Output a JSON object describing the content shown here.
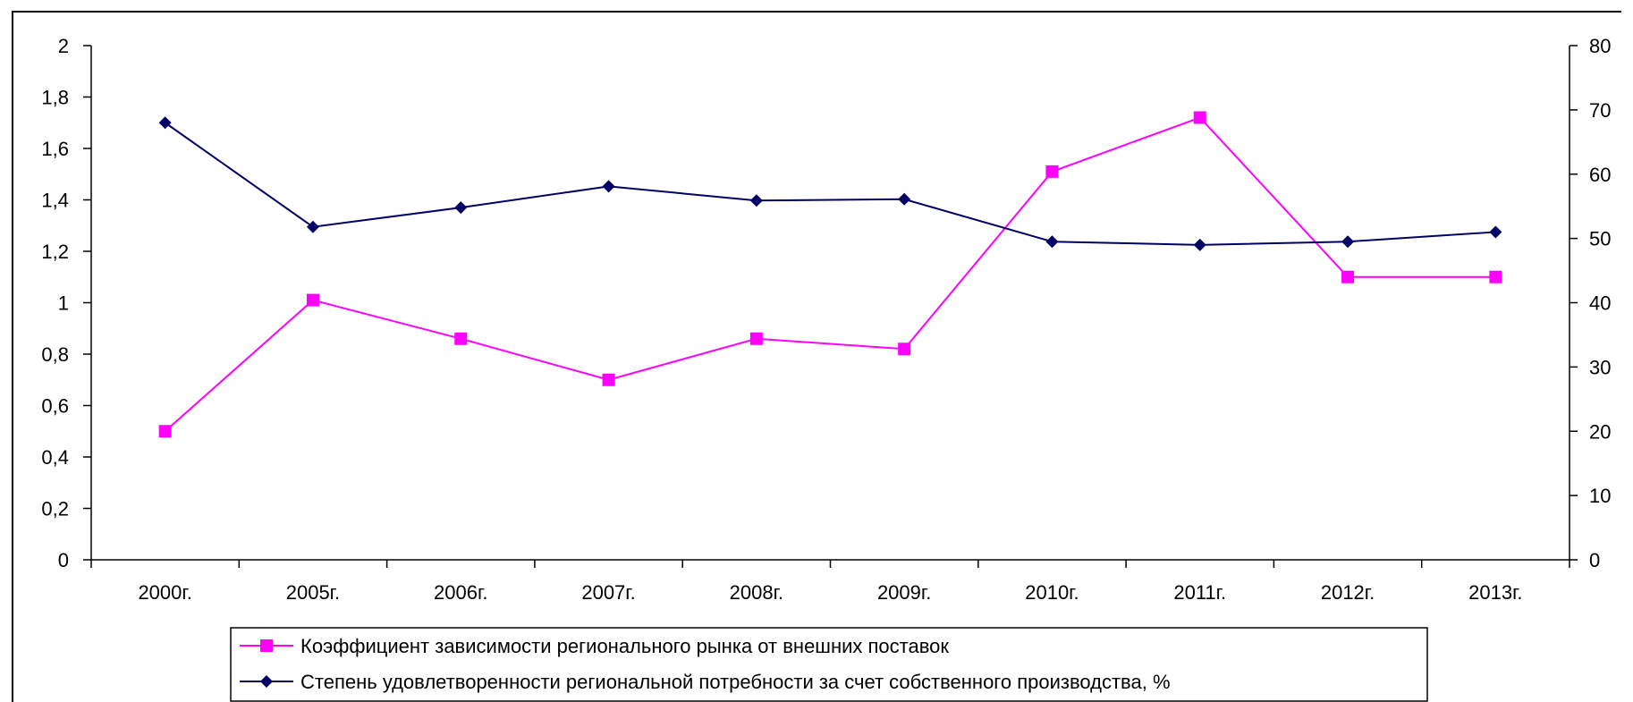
{
  "chart_data": {
    "type": "line",
    "title": "",
    "xlabel": "",
    "ylabel": "",
    "categories": [
      "2000г.",
      "2005г.",
      "2006г.",
      "2007г.",
      "2008г.",
      "2009г.",
      "2010г.",
      "2011г.",
      "2012г.",
      "2013г."
    ],
    "y_left": {
      "range": [
        0,
        2
      ],
      "ticks": [
        0,
        0.2,
        0.4,
        0.6,
        0.8,
        1,
        1.2,
        1.4,
        1.6,
        1.8,
        2
      ],
      "tick_labels": [
        "0",
        "0,2",
        "0,4",
        "0,6",
        "0,8",
        "1",
        "1,2",
        "1,4",
        "1,6",
        "1,8",
        "2"
      ]
    },
    "y_right": {
      "range": [
        0,
        80
      ],
      "ticks": [
        0,
        10,
        20,
        30,
        40,
        50,
        60,
        70,
        80
      ],
      "tick_labels": [
        "0",
        "10",
        "20",
        "30",
        "40",
        "50",
        "60",
        "70",
        "80"
      ]
    },
    "grid": false,
    "legend_position": "bottom",
    "series": [
      {
        "name": "Коэффициент зависимости регионального рынка от внешних поставок",
        "axis": "left",
        "color": "#ff00ff",
        "marker": "square",
        "values": [
          0.5,
          1.01,
          0.86,
          0.7,
          0.86,
          0.82,
          1.51,
          1.72,
          1.1,
          1.1
        ]
      },
      {
        "name": "Степень удовлетворенности региональной потребности за счет собственного производства, %",
        "axis": "right",
        "color": "#000066",
        "marker": "diamond",
        "values": [
          68,
          51.8,
          54.8,
          58.1,
          55.9,
          56.1,
          49.5,
          49,
          49.5,
          51
        ]
      }
    ]
  }
}
